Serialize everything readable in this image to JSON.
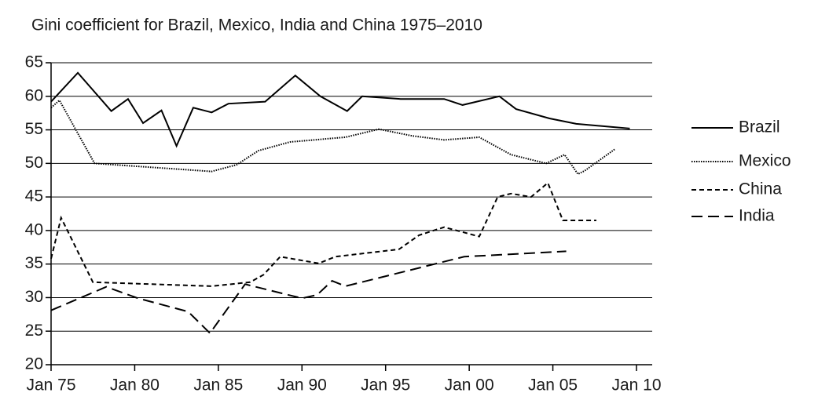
{
  "chart_data": {
    "type": "line",
    "title": "Gini coefficient for Brazil, Mexico, India and China 1975–2010",
    "xlim": [
      1975,
      2010
    ],
    "ylim": [
      20,
      65
    ],
    "xticks": [
      {
        "value": 1975,
        "label": "Jan 75"
      },
      {
        "value": 1980,
        "label": "Jan 80"
      },
      {
        "value": 1985,
        "label": "Jan 85"
      },
      {
        "value": 1990,
        "label": "Jan 90"
      },
      {
        "value": 1995,
        "label": "Jan 95"
      },
      {
        "value": 2000,
        "label": "Jan 00"
      },
      {
        "value": 2005,
        "label": "Jan 05"
      },
      {
        "value": 2010,
        "label": "Jan 10"
      }
    ],
    "yticks": [
      20,
      25,
      30,
      35,
      40,
      45,
      50,
      55,
      60,
      65
    ],
    "grid": true,
    "legend": "right",
    "series": [
      {
        "name": "Brazil",
        "color": "#000000",
        "dash": "solid",
        "x": [
          1975,
          1976.6,
          1978.6,
          1979.6,
          1980.5,
          1981.6,
          1982.5,
          1983.5,
          1984.6,
          1985.6,
          1987.8,
          1989.6,
          1991.1,
          1992.7,
          1993.6,
          1995.9,
          1998.5,
          1999.6,
          2001.8,
          2002.8,
          2004.8,
          2006.4,
          2009.6
        ],
        "values": [
          59.2,
          63.5,
          57.8,
          59.6,
          56,
          57.9,
          52.6,
          58.3,
          57.6,
          58.9,
          59.2,
          63.1,
          60,
          57.8,
          60,
          59.6,
          59.6,
          58.7,
          60,
          58.1,
          56.7,
          55.9,
          55.2
        ]
      },
      {
        "name": "Mexico",
        "color": "#000000",
        "dash": "dotted",
        "x": [
          1975,
          1975.5,
          1977.6,
          1984.6,
          1986.1,
          1987.4,
          1989.3,
          1992.6,
          1994.6,
          1996.6,
          1998.5,
          2000.6,
          2002.5,
          2004.6,
          2005.7,
          2006.5,
          2006.9,
          2008.7
        ],
        "values": [
          58.3,
          59.4,
          50,
          48.8,
          49.8,
          51.9,
          53.2,
          53.9,
          55.1,
          54.1,
          53.5,
          53.9,
          51.3,
          50,
          51.3,
          48.4,
          48.9,
          52.1
        ]
      },
      {
        "name": "China",
        "color": "#000000",
        "dash": "short-dash",
        "x": [
          1975,
          1975.6,
          1977.5,
          1984.6,
          1986.9,
          1987.7,
          1988.7,
          1991,
          1992,
          1995.8,
          1997,
          1998.5,
          2000.6,
          2001.7,
          2002.5,
          2003.7,
          2004.7,
          2005.6,
          2007.6
        ],
        "values": [
          35.8,
          41.9,
          32.3,
          31.7,
          32.3,
          33.4,
          36.1,
          35.1,
          36.1,
          37.2,
          39.3,
          40.5,
          39.1,
          45,
          45.5,
          45,
          47.1,
          41.5,
          41.5
        ]
      },
      {
        "name": "India",
        "color": "#000000",
        "dash": "long-dash",
        "x": [
          1975,
          1978.3,
          1980.2,
          1983.2,
          1984.5,
          1986.6,
          1990,
          1990.9,
          1991.8,
          1992.6,
          1999.7,
          2005.8
        ],
        "values": [
          28.1,
          31.6,
          29.9,
          27.9,
          24.7,
          32,
          29.9,
          30.4,
          32.5,
          31.7,
          36.1,
          36.9
        ]
      }
    ]
  }
}
